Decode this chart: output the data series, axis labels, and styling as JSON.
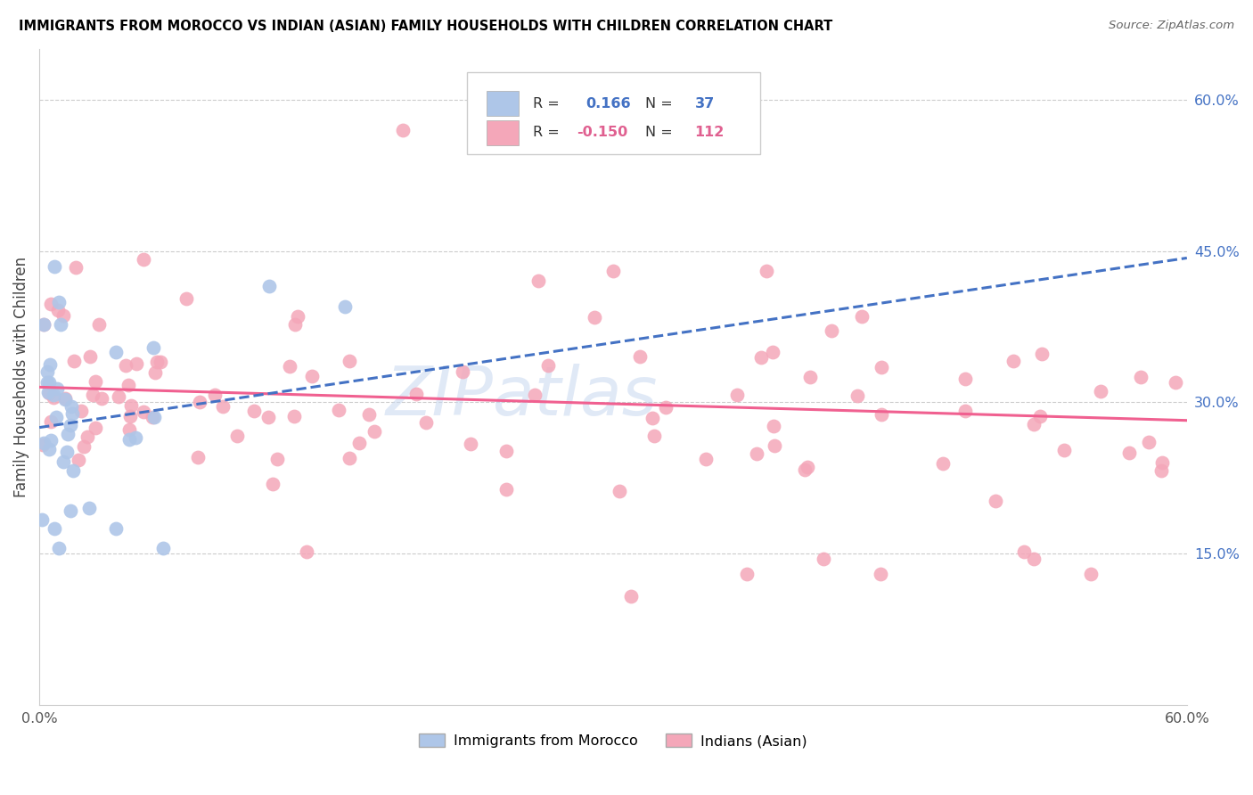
{
  "title": "IMMIGRANTS FROM MOROCCO VS INDIAN (ASIAN) FAMILY HOUSEHOLDS WITH CHILDREN CORRELATION CHART",
  "source": "Source: ZipAtlas.com",
  "ylabel": "Family Households with Children",
  "xlim": [
    0.0,
    0.6
  ],
  "ylim": [
    0.0,
    0.65
  ],
  "ytick_positions": [
    0.15,
    0.3,
    0.45,
    0.6
  ],
  "ytick_labels": [
    "15.0%",
    "30.0%",
    "45.0%",
    "60.0%"
  ],
  "xtick_positions": [
    0.0,
    0.1,
    0.2,
    0.3,
    0.4,
    0.5,
    0.6
  ],
  "xtick_labels": [
    "0.0%",
    "",
    "",
    "",
    "",
    "",
    "60.0%"
  ],
  "morocco_R": 0.166,
  "morocco_N": 37,
  "indian_R": -0.15,
  "indian_N": 112,
  "morocco_color": "#aec6e8",
  "indian_color": "#f4a7b9",
  "morocco_line_color": "#4472c4",
  "indian_line_color": "#f06090",
  "legend_text_color_blue": "#4472c4",
  "legend_text_color_pink": "#e06090",
  "watermark_color": "#c8d8f0",
  "grid_color": "#cccccc",
  "morocco_line_intercept": 0.275,
  "morocco_line_slope": 0.28,
  "indian_line_intercept": 0.315,
  "indian_line_slope": -0.055
}
